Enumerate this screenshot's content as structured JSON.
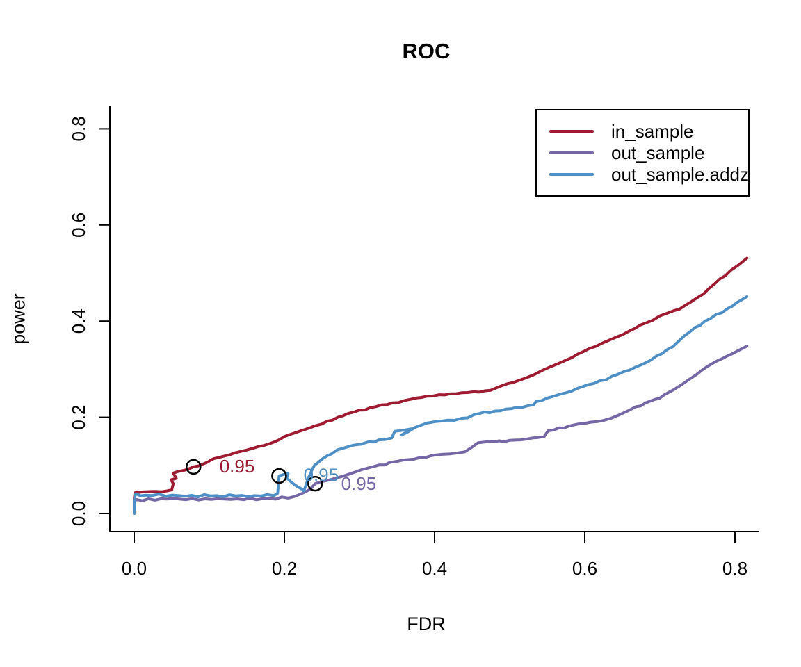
{
  "page": {
    "background": "#ffffff"
  },
  "chart_data": {
    "type": "line",
    "title": "ROC",
    "xlabel": "FDR",
    "ylabel": "power",
    "x_tick_labels": [
      "0.0",
      "0.2",
      "0.4",
      "0.6",
      "0.8"
    ],
    "y_tick_labels": [
      "0.0",
      "0.2",
      "0.4",
      "0.6",
      "0.8"
    ],
    "xlim": [
      -0.032,
      0.837
    ],
    "ylim": [
      -0.038,
      0.848
    ],
    "grid": false,
    "legend_position": "top-right",
    "axis_color": "#000000",
    "series": [
      {
        "name": "in_sample",
        "color": "#9E1B32",
        "points": [
          [
            0.0,
            0.0
          ],
          [
            0.0,
            0.03
          ],
          [
            0.001,
            0.043
          ],
          [
            0.012,
            0.045
          ],
          [
            0.028,
            0.046
          ],
          [
            0.044,
            0.047
          ],
          [
            0.05,
            0.049
          ],
          [
            0.052,
            0.062
          ],
          [
            0.049,
            0.07
          ],
          [
            0.056,
            0.073
          ],
          [
            0.052,
            0.084
          ],
          [
            0.058,
            0.087
          ],
          [
            0.064,
            0.089
          ],
          [
            0.07,
            0.091
          ],
          [
            0.079,
            0.097
          ],
          [
            0.086,
            0.099
          ],
          [
            0.092,
            0.103
          ],
          [
            0.098,
            0.107
          ],
          [
            0.102,
            0.111
          ],
          [
            0.106,
            0.114
          ],
          [
            0.112,
            0.116
          ],
          [
            0.119,
            0.119
          ],
          [
            0.127,
            0.122
          ],
          [
            0.134,
            0.126
          ],
          [
            0.142,
            0.129
          ],
          [
            0.15,
            0.132
          ],
          [
            0.157,
            0.135
          ],
          [
            0.165,
            0.139
          ],
          [
            0.172,
            0.141
          ],
          [
            0.18,
            0.145
          ],
          [
            0.187,
            0.149
          ],
          [
            0.194,
            0.154
          ],
          [
            0.2,
            0.16
          ],
          [
            0.207,
            0.164
          ],
          [
            0.213,
            0.167
          ],
          [
            0.222,
            0.172
          ],
          [
            0.232,
            0.177
          ],
          [
            0.242,
            0.183
          ],
          [
            0.257,
            0.192
          ],
          [
            0.271,
            0.2
          ],
          [
            0.285,
            0.208
          ],
          [
            0.3,
            0.215
          ],
          [
            0.314,
            0.22
          ],
          [
            0.33,
            0.226
          ],
          [
            0.344,
            0.23
          ],
          [
            0.36,
            0.235
          ],
          [
            0.375,
            0.24
          ],
          [
            0.39,
            0.244
          ],
          [
            0.406,
            0.247
          ],
          [
            0.421,
            0.249
          ],
          [
            0.436,
            0.251
          ],
          [
            0.452,
            0.253
          ],
          [
            0.467,
            0.255
          ],
          [
            0.482,
            0.261
          ],
          [
            0.497,
            0.27
          ],
          [
            0.511,
            0.276
          ],
          [
            0.522,
            0.282
          ],
          [
            0.533,
            0.289
          ],
          [
            0.544,
            0.298
          ],
          [
            0.559,
            0.308
          ],
          [
            0.575,
            0.319
          ],
          [
            0.59,
            0.331
          ],
          [
            0.606,
            0.343
          ],
          [
            0.623,
            0.354
          ],
          [
            0.641,
            0.366
          ],
          [
            0.66,
            0.38
          ],
          [
            0.681,
            0.396
          ],
          [
            0.7,
            0.411
          ],
          [
            0.719,
            0.422
          ],
          [
            0.733,
            0.432
          ],
          [
            0.75,
            0.449
          ],
          [
            0.766,
            0.469
          ],
          [
            0.78,
            0.488
          ],
          [
            0.794,
            0.505
          ],
          [
            0.805,
            0.517
          ],
          [
            0.816,
            0.531
          ]
        ]
      },
      {
        "name": "out_sample",
        "color": "#7566A5",
        "points": [
          [
            0.0,
            0.0
          ],
          [
            0.0,
            0.026
          ],
          [
            0.003,
            0.029
          ],
          [
            0.06,
            0.03
          ],
          [
            0.12,
            0.03
          ],
          [
            0.18,
            0.031
          ],
          [
            0.205,
            0.032
          ],
          [
            0.213,
            0.035
          ],
          [
            0.221,
            0.04
          ],
          [
            0.228,
            0.045
          ],
          [
            0.234,
            0.05
          ],
          [
            0.241,
            0.062
          ],
          [
            0.249,
            0.066
          ],
          [
            0.258,
            0.069
          ],
          [
            0.27,
            0.074
          ],
          [
            0.281,
            0.079
          ],
          [
            0.292,
            0.085
          ],
          [
            0.303,
            0.091
          ],
          [
            0.315,
            0.096
          ],
          [
            0.327,
            0.101
          ],
          [
            0.34,
            0.106
          ],
          [
            0.352,
            0.109
          ],
          [
            0.365,
            0.112
          ],
          [
            0.38,
            0.116
          ],
          [
            0.395,
            0.12
          ],
          [
            0.41,
            0.123
          ],
          [
            0.421,
            0.124
          ],
          [
            0.431,
            0.126
          ],
          [
            0.44,
            0.128
          ],
          [
            0.449,
            0.137
          ],
          [
            0.458,
            0.147
          ],
          [
            0.47,
            0.149
          ],
          [
            0.486,
            0.151
          ],
          [
            0.5,
            0.152
          ],
          [
            0.514,
            0.153
          ],
          [
            0.53,
            0.157
          ],
          [
            0.546,
            0.16
          ],
          [
            0.551,
            0.172
          ],
          [
            0.566,
            0.178
          ],
          [
            0.579,
            0.182
          ],
          [
            0.591,
            0.186
          ],
          [
            0.608,
            0.19
          ],
          [
            0.624,
            0.193
          ],
          [
            0.635,
            0.198
          ],
          [
            0.646,
            0.205
          ],
          [
            0.657,
            0.213
          ],
          [
            0.668,
            0.222
          ],
          [
            0.681,
            0.23
          ],
          [
            0.693,
            0.237
          ],
          [
            0.706,
            0.247
          ],
          [
            0.718,
            0.257
          ],
          [
            0.73,
            0.269
          ],
          [
            0.742,
            0.282
          ],
          [
            0.756,
            0.298
          ],
          [
            0.77,
            0.312
          ],
          [
            0.783,
            0.322
          ],
          [
            0.796,
            0.332
          ],
          [
            0.806,
            0.34
          ],
          [
            0.816,
            0.348
          ]
        ]
      },
      {
        "name": "out_sample.addz",
        "color": "#4E90C5",
        "points": [
          [
            0.0,
            0.0
          ],
          [
            0.0,
            0.028
          ],
          [
            0.002,
            0.041
          ],
          [
            0.015,
            0.038
          ],
          [
            0.06,
            0.037
          ],
          [
            0.11,
            0.037
          ],
          [
            0.16,
            0.037
          ],
          [
            0.186,
            0.037
          ],
          [
            0.191,
            0.042
          ],
          [
            0.193,
            0.078
          ],
          [
            0.199,
            0.081
          ],
          [
            0.205,
            0.083
          ],
          [
            0.203,
            0.074
          ],
          [
            0.21,
            0.064
          ],
          [
            0.217,
            0.056
          ],
          [
            0.223,
            0.051
          ],
          [
            0.226,
            0.047
          ],
          [
            0.229,
            0.06
          ],
          [
            0.232,
            0.074
          ],
          [
            0.236,
            0.088
          ],
          [
            0.24,
            0.1
          ],
          [
            0.245,
            0.106
          ],
          [
            0.251,
            0.114
          ],
          [
            0.257,
            0.12
          ],
          [
            0.263,
            0.124
          ],
          [
            0.27,
            0.132
          ],
          [
            0.281,
            0.137
          ],
          [
            0.292,
            0.142
          ],
          [
            0.302,
            0.144
          ],
          [
            0.312,
            0.149
          ],
          [
            0.326,
            0.153
          ],
          [
            0.343,
            0.157
          ],
          [
            0.347,
            0.171
          ],
          [
            0.358,
            0.173
          ],
          [
            0.369,
            0.176
          ],
          [
            0.356,
            0.163
          ],
          [
            0.374,
            0.179
          ],
          [
            0.381,
            0.183
          ],
          [
            0.39,
            0.188
          ],
          [
            0.401,
            0.191
          ],
          [
            0.417,
            0.194
          ],
          [
            0.436,
            0.198
          ],
          [
            0.452,
            0.205
          ],
          [
            0.467,
            0.211
          ],
          [
            0.48,
            0.213
          ],
          [
            0.495,
            0.217
          ],
          [
            0.51,
            0.221
          ],
          [
            0.524,
            0.224
          ],
          [
            0.532,
            0.226
          ],
          [
            0.535,
            0.233
          ],
          [
            0.55,
            0.24
          ],
          [
            0.561,
            0.245
          ],
          [
            0.575,
            0.251
          ],
          [
            0.59,
            0.26
          ],
          [
            0.605,
            0.268
          ],
          [
            0.62,
            0.276
          ],
          [
            0.636,
            0.285
          ],
          [
            0.652,
            0.295
          ],
          [
            0.667,
            0.304
          ],
          [
            0.682,
            0.314
          ],
          [
            0.695,
            0.327
          ],
          [
            0.71,
            0.341
          ],
          [
            0.724,
            0.357
          ],
          [
            0.733,
            0.37
          ],
          [
            0.747,
            0.387
          ],
          [
            0.76,
            0.4
          ],
          [
            0.775,
            0.414
          ],
          [
            0.79,
            0.426
          ],
          [
            0.803,
            0.439
          ],
          [
            0.816,
            0.451
          ]
        ]
      }
    ],
    "threshold_markers": [
      {
        "series": "in_sample",
        "x": 0.079,
        "y": 0.097,
        "label": "0.95",
        "label_x": 0.137,
        "label_y": 0.098
      },
      {
        "series": "out_sample.addz",
        "x": 0.193,
        "y": 0.078,
        "label": "0.95",
        "label_x": 0.249,
        "label_y": 0.08
      },
      {
        "series": "out_sample",
        "x": 0.241,
        "y": 0.062,
        "label": "0.95",
        "label_x": 0.299,
        "label_y": 0.062
      }
    ]
  }
}
